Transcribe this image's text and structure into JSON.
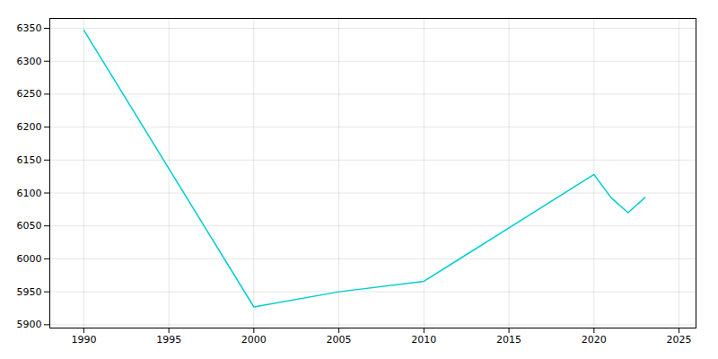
{
  "chart_data": {
    "type": "line",
    "x": [
      1990,
      2000,
      2005,
      2010,
      2020,
      2021,
      2022,
      2023
    ],
    "values": [
      6347,
      5927,
      5950,
      5966,
      6128,
      6093,
      6070,
      6093
    ],
    "color": "#00CED1",
    "xlim": [
      1988,
      2026
    ],
    "ylim": [
      5895,
      6365
    ],
    "xticks": [
      1990,
      1995,
      2000,
      2005,
      2010,
      2015,
      2020,
      2025
    ],
    "yticks": [
      5900,
      5950,
      6000,
      6050,
      6100,
      6150,
      6200,
      6250,
      6300,
      6350
    ],
    "grid": true
  }
}
